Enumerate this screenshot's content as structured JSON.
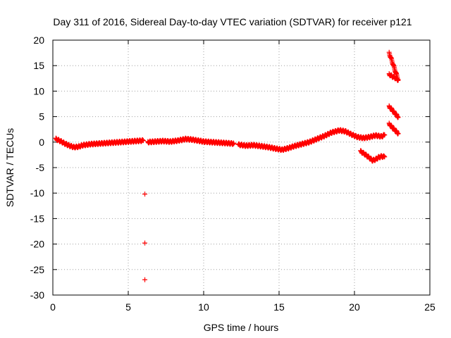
{
  "chart_data": {
    "type": "scatter",
    "title": "Day 311 of 2016, Sidereal Day-to-day VTEC variation (SDTVAR) for receiver p121",
    "xlabel": "GPS time / hours",
    "ylabel": "SDTVAR / TECUs",
    "xlim": [
      0,
      25
    ],
    "ylim": [
      -30,
      20
    ],
    "xticks": [
      0,
      5,
      10,
      15,
      20,
      25
    ],
    "yticks": [
      -30,
      -25,
      -20,
      -15,
      -10,
      -5,
      0,
      5,
      10,
      15,
      20
    ],
    "grid": true,
    "marker": "+",
    "color": "#ff0000",
    "series": [
      {
        "name": "SDTVAR",
        "segments": [
          {
            "x": [
              0.2,
              0.5,
              0.8,
              1.1,
              1.4,
              1.7,
              2.0,
              2.5,
              3.0,
              3.5,
              4.0,
              4.5,
              5.0,
              5.5,
              6.0
            ],
            "y": [
              0.6,
              0.2,
              -0.3,
              -0.7,
              -1.0,
              -0.9,
              -0.6,
              -0.4,
              -0.3,
              -0.2,
              -0.1,
              0.0,
              0.1,
              0.2,
              0.3
            ]
          },
          {
            "x": [
              6.3,
              6.8,
              7.3,
              7.8,
              8.3,
              8.8,
              9.2,
              9.6,
              10.0,
              10.5,
              11.0,
              11.5,
              12.0
            ],
            "y": [
              0.0,
              0.1,
              0.2,
              0.1,
              0.3,
              0.6,
              0.5,
              0.3,
              0.1,
              0.0,
              -0.1,
              -0.2,
              -0.3
            ]
          },
          {
            "x": [
              12.3,
              12.8,
              13.3,
              13.8,
              14.3,
              14.8,
              15.2,
              15.6,
              16.0,
              16.5,
              17.0,
              17.5,
              18.0,
              18.5,
              19.0,
              19.4,
              19.8,
              20.2,
              20.6,
              21.0,
              21.4,
              21.8,
              22.0
            ],
            "y": [
              -0.5,
              -0.7,
              -0.6,
              -0.8,
              -1.0,
              -1.3,
              -1.5,
              -1.2,
              -0.8,
              -0.4,
              0.0,
              0.6,
              1.2,
              1.9,
              2.3,
              2.1,
              1.5,
              1.0,
              0.8,
              1.0,
              1.3,
              1.1,
              1.4
            ]
          },
          {
            "x": [
              20.4,
              20.7,
              21.0,
              21.2,
              21.4,
              21.6,
              21.8,
              22.0
            ],
            "y": [
              -1.8,
              -2.4,
              -3.1,
              -3.6,
              -3.4,
              -3.0,
              -2.8,
              -2.9
            ]
          },
          {
            "x": [
              22.3,
              22.5,
              22.7,
              22.9
            ],
            "y": [
              17.5,
              15.8,
              14.0,
              12.2
            ]
          },
          {
            "x": [
              22.3,
              22.5,
              22.7,
              22.9
            ],
            "y": [
              13.3,
              12.9,
              12.6,
              12.2
            ]
          },
          {
            "x": [
              22.3,
              22.5,
              22.7,
              22.9
            ],
            "y": [
              7.0,
              6.3,
              5.6,
              4.9
            ]
          },
          {
            "x": [
              22.3,
              22.5,
              22.7,
              22.9
            ],
            "y": [
              3.6,
              2.9,
              2.3,
              1.7
            ]
          }
        ],
        "outliers": {
          "x": [
            6.1,
            6.1,
            6.1
          ],
          "y": [
            -10.2,
            -19.8,
            -27.0
          ]
        }
      }
    ]
  }
}
